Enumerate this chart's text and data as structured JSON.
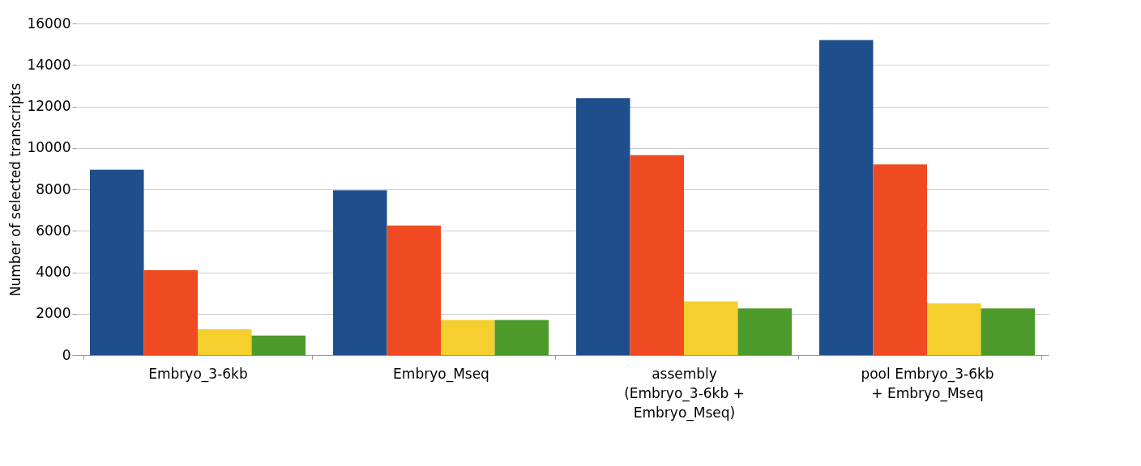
{
  "chart_data": {
    "type": "bar",
    "ylabel": "Number of selected transcripts",
    "categories": [
      "Embryo_3-6kb",
      "Embryo_Mseq",
      "assembly (Embryo_3-6kb + Embryo_Mseq)",
      "pool Embryo_3-6kb + Embryo_Mseq"
    ],
    "series": [
      {
        "color": "#1f4e8c",
        "values": [
          8950,
          7950,
          12400,
          15200
        ]
      },
      {
        "color": "#f04a23",
        "values": [
          4100,
          6250,
          9650,
          9200
        ]
      },
      {
        "color": "#f5cf2e",
        "values": [
          1250,
          1700,
          2600,
          2500
        ]
      },
      {
        "color": "#4c9a2a",
        "values": [
          950,
          1700,
          2250,
          2250
        ]
      }
    ],
    "ylim": [
      0,
      16000
    ],
    "yticks": [
      0,
      2000,
      4000,
      6000,
      8000,
      10000,
      12000,
      14000,
      16000
    ],
    "grid": "y",
    "legend": false
  }
}
